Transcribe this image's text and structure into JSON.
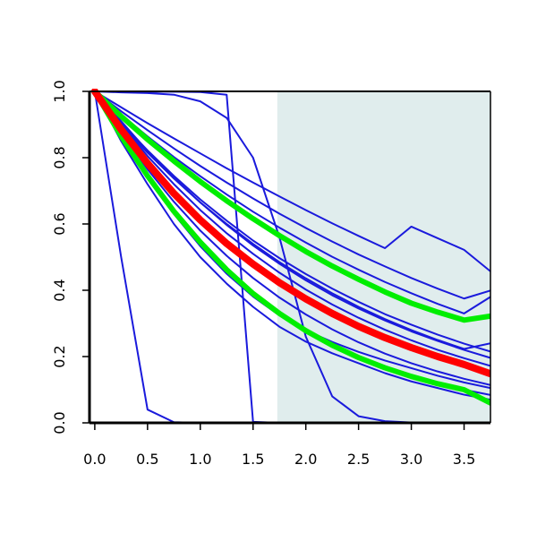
{
  "chart_data": {
    "type": "line",
    "title": "",
    "xlabel": "",
    "ylabel": "",
    "xlim": [
      -0.05,
      3.75
    ],
    "ylim": [
      0.0,
      1.0
    ],
    "x_ticks": [
      "0.0",
      "0.5",
      "1.0",
      "1.5",
      "2.0",
      "2.5",
      "3.0",
      "3.5"
    ],
    "y_ticks": [
      "0.0",
      "0.2",
      "0.4",
      "0.6",
      "0.8",
      "1.0"
    ],
    "grid": false,
    "legend": "none",
    "shaded_region": {
      "x_start": 1.73,
      "x_end": 3.75,
      "color": "#e0eded"
    },
    "colors": {
      "blue": "#1a1adc",
      "green": "#00ee00",
      "red": "#ff0000",
      "shade": "#e0eded",
      "axis": "#000000"
    },
    "x_sample": [
      0,
      0.25,
      0.5,
      0.75,
      1.0,
      1.25,
      1.5,
      1.75,
      2.0,
      2.25,
      2.5,
      2.75,
      3.0,
      3.25,
      3.5,
      3.75
    ],
    "series": [
      {
        "color": "blue",
        "width": 2,
        "values": [
          1,
          0.952,
          0.904,
          0.858,
          0.813,
          0.768,
          0.725,
          0.683,
          0.642,
          0.602,
          0.564,
          0.527,
          0.592,
          0.557,
          0.522,
          0.457
        ]
      },
      {
        "color": "blue",
        "width": 2,
        "values": [
          1,
          0.94,
          0.883,
          0.828,
          0.775,
          0.725,
          0.677,
          0.631,
          0.588,
          0.547,
          0.508,
          0.472,
          0.437,
          0.405,
          0.375,
          0.399
        ]
      },
      {
        "color": "blue",
        "width": 2,
        "values": [
          1,
          0.93,
          0.864,
          0.802,
          0.744,
          0.689,
          0.637,
          0.589,
          0.544,
          0.501,
          0.462,
          0.425,
          0.391,
          0.359,
          0.33,
          0.38
        ]
      },
      {
        "color": "blue",
        "width": 2,
        "values": [
          1,
          0.9,
          0.815,
          0.737,
          0.665,
          0.6,
          0.54,
          0.485,
          0.436,
          0.391,
          0.35,
          0.313,
          0.28,
          0.25,
          0.223,
          0.24
        ]
      },
      {
        "color": "blue",
        "width": 2,
        "values": [
          1,
          0.905,
          0.822,
          0.745,
          0.674,
          0.61,
          0.55,
          0.497,
          0.449,
          0.405,
          0.365,
          0.328,
          0.296,
          0.266,
          0.239,
          0.215
        ]
      },
      {
        "color": "blue",
        "width": 2,
        "values": [
          1,
          0.91,
          0.82,
          0.74,
          0.665,
          0.597,
          0.535,
          0.48,
          0.43,
          0.385,
          0.345,
          0.309,
          0.276,
          0.247,
          0.22,
          0.196
        ]
      },
      {
        "color": "blue",
        "width": 2,
        "values": [
          1,
          0.9,
          0.805,
          0.72,
          0.642,
          0.572,
          0.51,
          0.453,
          0.402,
          0.357,
          0.317,
          0.281,
          0.249,
          0.22,
          0.195,
          0.172
        ]
      },
      {
        "color": "blue",
        "width": 2,
        "values": [
          1,
          0.89,
          0.79,
          0.7,
          0.62,
          0.548,
          0.485,
          0.428,
          0.377,
          0.332,
          0.292,
          0.257,
          0.226,
          0.199,
          0.175,
          0.153
        ]
      },
      {
        "color": "blue",
        "width": 2,
        "values": [
          1,
          0.875,
          0.765,
          0.667,
          0.58,
          0.504,
          0.437,
          0.378,
          0.327,
          0.282,
          0.243,
          0.209,
          0.18,
          0.155,
          0.133,
          0.114
        ]
      },
      {
        "color": "blue",
        "width": 2,
        "values": [
          1,
          0.862,
          0.74,
          0.63,
          0.533,
          0.45,
          0.381,
          0.324,
          0.279,
          0.244,
          0.214,
          0.188,
          0.165,
          0.142,
          0.122,
          0.105
        ]
      },
      {
        "color": "blue",
        "width": 2,
        "values": [
          1,
          0.865,
          0.745,
          0.638,
          0.545,
          0.462,
          0.39,
          0.33,
          0.278,
          0.234,
          0.197,
          0.166,
          0.14,
          0.118,
          0.1,
          0.084
        ]
      },
      {
        "color": "blue",
        "width": 2,
        "values": [
          1,
          0.85,
          0.72,
          0.6,
          0.5,
          0.42,
          0.35,
          0.29,
          0.245,
          0.21,
          0.18,
          0.15,
          0.125,
          0.105,
          0.085,
          0.07
        ]
      },
      {
        "color": "blue",
        "width": 2,
        "values": [
          1,
          0.997,
          0.995,
          0.99,
          0.97,
          0.92,
          0.8,
          0.56,
          0.26,
          0.08,
          0.02,
          0.005,
          0.001,
          0,
          0,
          0
        ]
      },
      {
        "color": "blue",
        "width": 2,
        "values": [
          1,
          0.999,
          0.999,
          0.999,
          0.998,
          0.99,
          0.003,
          0,
          0,
          0,
          0,
          0,
          0,
          0,
          0,
          0
        ]
      },
      {
        "color": "blue",
        "width": 2,
        "values": [
          1,
          0.5,
          0.04,
          0.002,
          0,
          0,
          0,
          0,
          0,
          0,
          0,
          0,
          0,
          0,
          0,
          0
        ]
      },
      {
        "color": "green",
        "width": 6,
        "values": [
          1,
          0.925,
          0.855,
          0.79,
          0.728,
          0.67,
          0.616,
          0.565,
          0.517,
          0.473,
          0.433,
          0.395,
          0.361,
          0.334,
          0.31,
          0.322
        ]
      },
      {
        "color": "green",
        "width": 6,
        "values": [
          1,
          0.865,
          0.745,
          0.638,
          0.545,
          0.462,
          0.39,
          0.33,
          0.278,
          0.234,
          0.197,
          0.166,
          0.14,
          0.118,
          0.1,
          0.06
        ]
      },
      {
        "color": "red",
        "width": 8,
        "values": [
          1,
          0.885,
          0.783,
          0.692,
          0.612,
          0.541,
          0.479,
          0.423,
          0.374,
          0.33,
          0.291,
          0.257,
          0.227,
          0.2,
          0.176,
          0.148
        ]
      }
    ]
  }
}
